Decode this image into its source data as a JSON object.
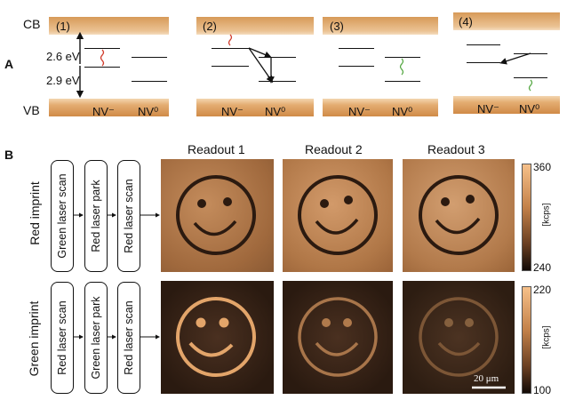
{
  "panel_a": {
    "label": "A",
    "cb_label": "CB",
    "vb_label": "VB",
    "energy_top": "2.6 eV",
    "energy_bottom": "2.9 eV",
    "steps": [
      "(1)",
      "(2)",
      "(3)",
      "(4)"
    ],
    "nv_minus": "NV⁻",
    "nv_zero": "NV⁰"
  },
  "panel_b": {
    "label": "B",
    "readouts": [
      "Readout 1",
      "Readout 2",
      "Readout 3"
    ],
    "rows": [
      {
        "title": "Red imprint",
        "steps": [
          "Green laser scan",
          "Red laser park",
          "Red laser scan"
        ],
        "colorbar": {
          "max": "360",
          "min": "240",
          "unit": "[kcps]"
        }
      },
      {
        "title": "Green imprint",
        "steps": [
          "Red laser scan",
          "Green laser park",
          "Red laser scan"
        ],
        "colorbar": {
          "max": "220",
          "min": "100",
          "unit": "[kcps]"
        }
      }
    ],
    "scale_bar": "20 μm"
  },
  "colors": {
    "band_orange": "#d79a58",
    "red_wave": "#d03a2a",
    "green_wave": "#56a844"
  }
}
